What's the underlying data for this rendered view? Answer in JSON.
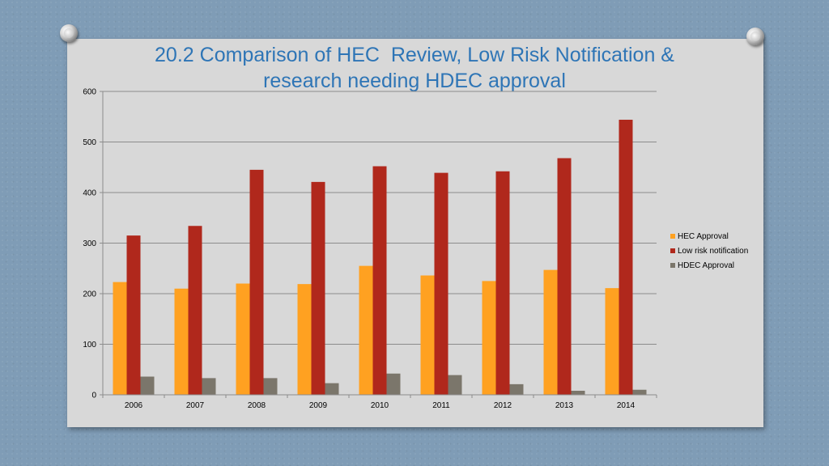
{
  "title_line1": "20.2 Comparison of HEC  Review, Low Risk Notification &",
  "title_line2": "research needing HDEC approval",
  "chart_data": {
    "type": "bar",
    "categories": [
      "2006",
      "2007",
      "2008",
      "2009",
      "2010",
      "2011",
      "2012",
      "2013",
      "2014"
    ],
    "series": [
      {
        "name": "HEC Approval",
        "color": "#ffa121",
        "values": [
          223,
          210,
          220,
          219,
          255,
          236,
          225,
          247,
          211
        ]
      },
      {
        "name": "Low risk notification",
        "color": "#b0281c",
        "values": [
          315,
          334,
          445,
          421,
          452,
          439,
          442,
          468,
          544
        ]
      },
      {
        "name": "HDEC Approval",
        "color": "#7b766b",
        "values": [
          36,
          33,
          33,
          23,
          42,
          39,
          21,
          8,
          10
        ]
      }
    ],
    "ylim": [
      0,
      600
    ],
    "yticks": [
      "0",
      "100",
      "200",
      "300",
      "400",
      "500",
      "600"
    ],
    "grid": true,
    "legend_position": "right"
  }
}
